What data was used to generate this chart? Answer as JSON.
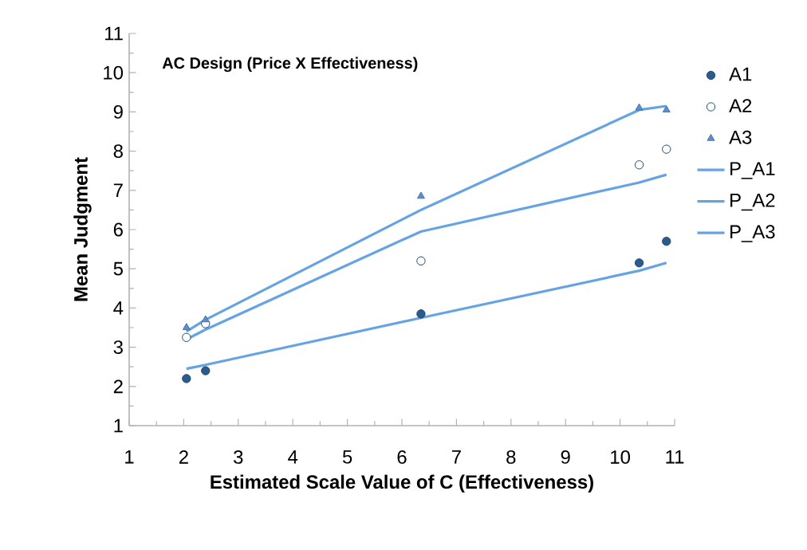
{
  "chart_data": {
    "type": "scatter",
    "title": "AC Design (Price X Effectiveness)",
    "xlabel": "Estimated Scale Value of C (Effectiveness)",
    "ylabel": "Mean Judgment",
    "x": [
      2.05,
      2.4,
      6.35,
      10.35,
      10.85
    ],
    "series": [
      {
        "name": "A1",
        "marker": "circle",
        "color": "#2b5b8c",
        "values": [
          2.2,
          2.4,
          3.85,
          5.15,
          5.7
        ]
      },
      {
        "name": "A2",
        "marker": "circle",
        "color": "#ffffff",
        "values": [
          3.25,
          3.6,
          5.2,
          7.65,
          8.05
        ]
      },
      {
        "name": "A3",
        "marker": "triangle",
        "color": "#5b8fcf",
        "values": [
          3.5,
          3.7,
          6.85,
          9.1,
          9.05
        ]
      },
      {
        "name": "P_A1",
        "type": "line",
        "marker": "none",
        "color": "#65a3e3",
        "values": [
          2.45,
          2.55,
          3.75,
          4.95,
          5.15
        ]
      },
      {
        "name": "P_A2",
        "type": "line",
        "marker": "none",
        "color": "#65a3e3",
        "values": [
          3.2,
          3.45,
          5.95,
          7.2,
          7.4
        ]
      },
      {
        "name": "P_A3",
        "type": "line",
        "marker": "none",
        "color": "#65a3e3",
        "values": [
          3.4,
          3.7,
          6.5,
          9.05,
          9.15
        ]
      }
    ],
    "xlim": [
      1,
      11
    ],
    "xticks": [
      1,
      2,
      3,
      4,
      5,
      6,
      7,
      8,
      9,
      10,
      11
    ],
    "ylim": [
      1,
      11
    ],
    "yticks": [
      1,
      2,
      3,
      4,
      5,
      6,
      7,
      8,
      9,
      10,
      11
    ],
    "grid": false,
    "legend": "right"
  }
}
